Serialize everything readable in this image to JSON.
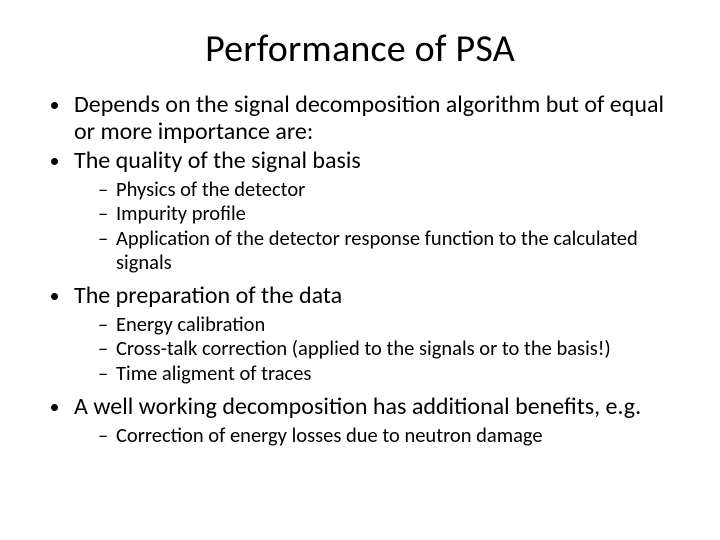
{
  "title": "Performance of PSA",
  "bullets": {
    "b0": "Depends on the signal decomposition algorithm but of equal or more importance are:",
    "b1": "The quality of the signal basis",
    "b1s": {
      "s0": "Physics of the detector",
      "s1": "Impurity profile",
      "s2": "Application of the detector response function to the calculated signals"
    },
    "b2": "The preparation of the data",
    "b2s": {
      "s0": "Energy calibration",
      "s1": "Cross-talk correction   (applied to the signals or to the basis!)",
      "s2": "Time aligment of traces"
    },
    "b3": "A well working decomposition has additional benefits, e.g.",
    "b3s": {
      "s0": "Correction of energy losses due to neutron damage"
    }
  },
  "colors": {
    "background": "#ffffff",
    "text": "#000000"
  },
  "typography": {
    "title_fontsize_pt": 38,
    "level1_fontsize_pt": 24,
    "level2_fontsize_pt": 20.5,
    "font_family": "Calibri"
  }
}
